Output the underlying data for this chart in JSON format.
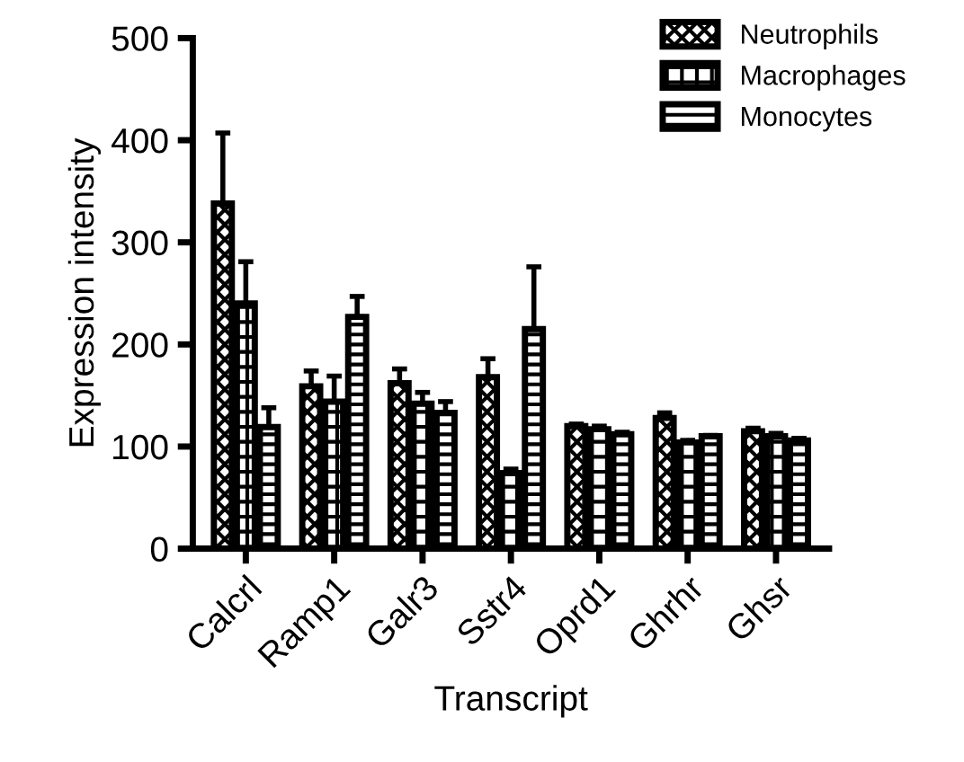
{
  "chart_data": {
    "type": "bar",
    "xlabel": "Transcript",
    "ylabel": "Expression intensity",
    "categories": [
      "Calcrl",
      "Ramp1",
      "Galr3",
      "Sstr4",
      "Oprd1",
      "Ghrhr",
      "Ghsr"
    ],
    "series": [
      {
        "name": "Neutrophils",
        "color": "#000000",
        "values": [
          338,
          159,
          162,
          168,
          120,
          128,
          115
        ],
        "errors": [
          [
            338,
            407
          ],
          [
            159,
            174
          ],
          [
            162,
            176
          ],
          [
            168,
            186
          ],
          [
            120,
            122
          ],
          [
            128,
            133
          ],
          [
            115,
            118
          ]
        ]
      },
      {
        "name": "Macrophages",
        "color": "#000000",
        "values": [
          240,
          144,
          142,
          74,
          117,
          104,
          110
        ],
        "errors": [
          [
            240,
            281
          ],
          [
            144,
            169
          ],
          [
            142,
            153
          ],
          [
            74,
            78
          ],
          [
            117,
            120
          ],
          [
            104,
            106
          ],
          [
            110,
            113
          ]
        ]
      },
      {
        "name": "Monocytes",
        "color": "#000000",
        "values": [
          119,
          227,
          133,
          215,
          112,
          110,
          106
        ],
        "errors": [
          [
            119,
            138
          ],
          [
            227,
            247
          ],
          [
            133,
            144
          ],
          [
            215,
            276
          ],
          [
            112,
            114
          ],
          [
            110,
            111
          ],
          [
            106,
            108
          ]
        ]
      }
    ],
    "ylim": [
      0,
      500
    ],
    "yticks": [
      0,
      100,
      200,
      300,
      400,
      500
    ],
    "grid": false,
    "legend": "top right"
  }
}
